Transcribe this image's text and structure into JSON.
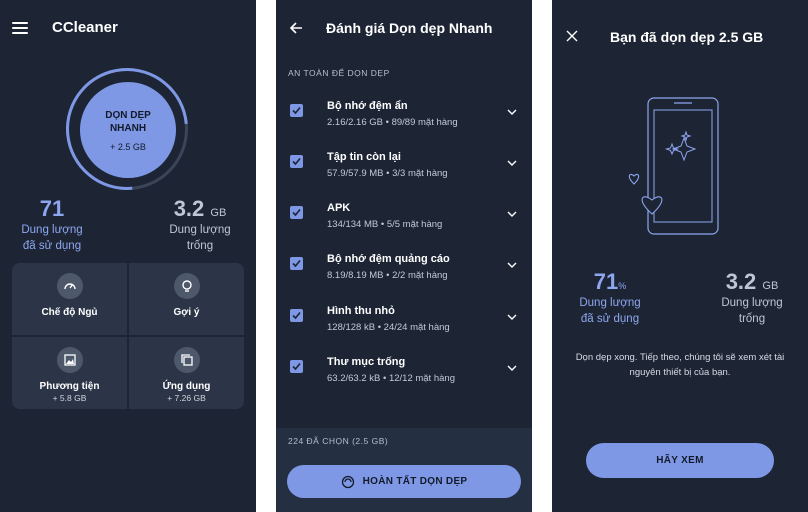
{
  "home": {
    "app_title": "CCleaner",
    "quick_clean": {
      "line1": "DỌN DẸP",
      "line2": "NHANH",
      "size": "+ 2.5 GB"
    },
    "used": {
      "value": "71",
      "label1": "Dung lượng",
      "label2": "đã sử dụng"
    },
    "free": {
      "value": "3.2",
      "unit": "GB",
      "label1": "Dung lượng",
      "label2": "trống"
    },
    "tiles": [
      {
        "label": "Chế độ Ngủ",
        "sub": "",
        "icon": "speedometer-icon"
      },
      {
        "label": "Gợi ý",
        "sub": "",
        "icon": "lightbulb-icon"
      },
      {
        "label": "Phương tiện",
        "sub": "+ 5.8 GB",
        "icon": "image-icon"
      },
      {
        "label": "Ứng dụng",
        "sub": "+ 7.26 GB",
        "icon": "apps-icon"
      }
    ]
  },
  "review": {
    "title": "Đánh giá Dọn dẹp Nhanh",
    "section_label": "AN TOÀN ĐỂ DỌN DẸP",
    "items": [
      {
        "name": "Bộ nhớ đệm ẩn",
        "detail": "2.16/2.16 GB • 89/89 mặt hàng",
        "checked": true
      },
      {
        "name": "Tập tin còn lại",
        "detail": "57.9/57.9 MB • 3/3 mặt hàng",
        "checked": true
      },
      {
        "name": "APK",
        "detail": "134/134 MB • 5/5 mặt hàng",
        "checked": true
      },
      {
        "name": "Bộ nhớ đệm quảng cáo",
        "detail": "8.19/8.19 MB • 2/2 mặt hàng",
        "checked": true
      },
      {
        "name": "Hình thu nhỏ",
        "detail": "128/128 kB • 24/24 mặt hàng",
        "checked": true
      },
      {
        "name": "Thư mục trống",
        "detail": "63.2/63.2 kB • 12/12 mặt hàng",
        "checked": true
      }
    ],
    "selected_count": "224 ĐÃ CHỌN (2.5 GB)",
    "finish_button": "HOÀN TẤT DỌN DẸP"
  },
  "result": {
    "title": "Bạn đã dọn dẹp 2.5 GB",
    "used": {
      "value": "71",
      "unit": "%",
      "label1": "Dung lượng",
      "label2": "đã sử dụng"
    },
    "free": {
      "value": "3.2",
      "unit": "GB",
      "label1": "Dung lượng",
      "label2": "trống"
    },
    "message": "Dọn dẹp xong. Tiếp theo, chúng tôi sẽ xem xét tài nguyên thiết bị của bạn.",
    "view_button": "HÃY XEM"
  },
  "colors": {
    "background": "#1d2535",
    "accent": "#7e98e6",
    "tile": "#2c3547"
  }
}
